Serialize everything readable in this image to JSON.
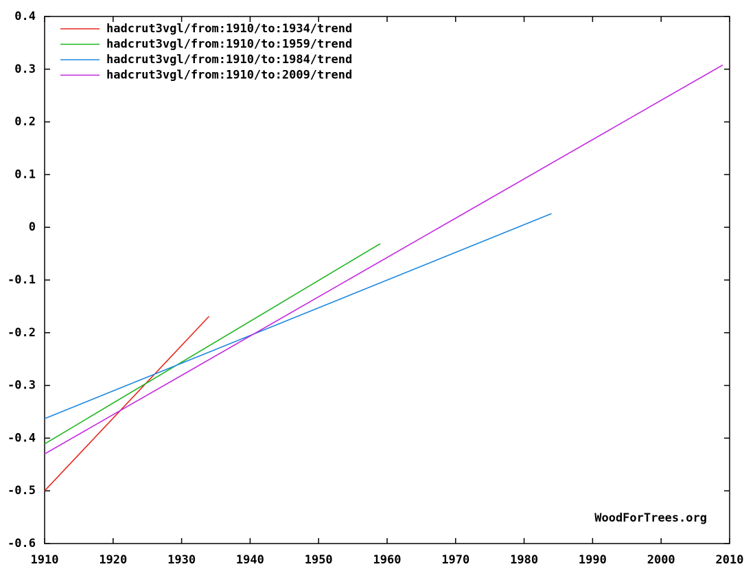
{
  "chart_data": {
    "type": "line",
    "series": [
      {
        "name": "hadcrut3vgl/from:1910/to:1934/trend",
        "color": "#e8261c",
        "x": [
          1910,
          1934
        ],
        "values": [
          -0.5,
          -0.169
        ]
      },
      {
        "name": "hadcrut3vgl/from:1910/to:1959/trend",
        "color": "#1fb51f",
        "x": [
          1910,
          1959
        ],
        "values": [
          -0.411,
          -0.031
        ]
      },
      {
        "name": "hadcrut3vgl/from:1910/to:1984/trend",
        "color": "#1e88e0",
        "x": [
          1910,
          1984
        ],
        "values": [
          -0.363,
          0.026
        ]
      },
      {
        "name": "hadcrut3vgl/from:1910/to:2009/trend",
        "color": "#c227e0",
        "x": [
          1910,
          2009
        ],
        "values": [
          -0.43,
          0.308
        ]
      }
    ],
    "xlim": [
      1910,
      2010
    ],
    "xticks": [
      1910,
      1920,
      1930,
      1940,
      1950,
      1960,
      1970,
      1980,
      1990,
      2000,
      2010
    ],
    "ylim": [
      -0.6,
      0.4
    ],
    "yticks": [
      -0.6,
      -0.5,
      -0.4,
      -0.3,
      -0.2,
      -0.1,
      0,
      0.1,
      0.2,
      0.3,
      0.4
    ],
    "annotation": "WoodForTrees.org",
    "legend": "top-left"
  }
}
